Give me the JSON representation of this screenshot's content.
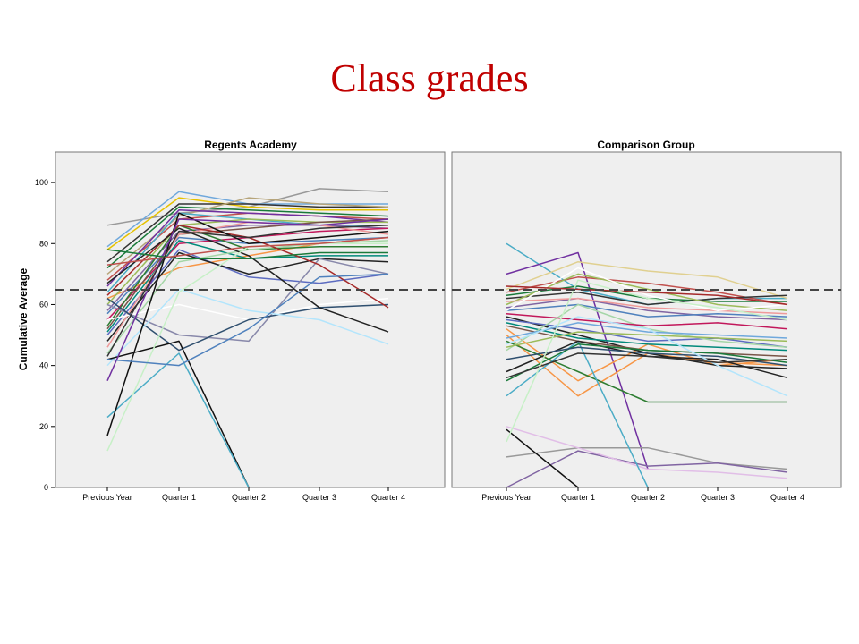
{
  "slide": {
    "title": "Class grades"
  },
  "chart_data": [
    {
      "type": "line",
      "title": "Regents Academy",
      "ylabel": "Cumulative Average",
      "categories": [
        "Previous Year",
        "Quarter 1",
        "Quarter 2",
        "Quarter 3",
        "Quarter 4"
      ],
      "yticks": [
        0,
        20,
        40,
        60,
        80,
        100
      ],
      "ylim": [
        0,
        110
      ],
      "reference_line": 65,
      "series": [
        {
          "color": "#999999",
          "values": [
            86,
            90,
            92,
            98,
            97
          ]
        },
        {
          "color": "#6fa8dc",
          "values": [
            79,
            97,
            93,
            93,
            93
          ]
        },
        {
          "color": "#e6c200",
          "values": [
            78,
            95,
            92,
            91,
            91
          ]
        },
        {
          "color": "#333333",
          "values": [
            74,
            93,
            93,
            92,
            92
          ]
        },
        {
          "color": "#1a7a3a",
          "values": [
            72,
            92,
            91,
            90,
            89
          ]
        },
        {
          "color": "#b7a57a",
          "values": [
            70,
            89,
            95,
            93,
            92
          ]
        },
        {
          "color": "#c0504d",
          "values": [
            68,
            88,
            90,
            89,
            88
          ]
        },
        {
          "color": "#7030a0",
          "values": [
            66,
            91,
            90,
            89,
            87
          ]
        },
        {
          "color": "#4bacc6",
          "values": [
            64,
            90,
            88,
            86,
            86
          ]
        },
        {
          "color": "#f79646",
          "values": [
            62,
            72,
            76,
            80,
            82
          ]
        },
        {
          "color": "#9bbb59",
          "values": [
            60,
            86,
            88,
            87,
            87
          ]
        },
        {
          "color": "#8064a2",
          "values": [
            58,
            84,
            86,
            86,
            85
          ]
        },
        {
          "color": "#4f81bd",
          "values": [
            57,
            82,
            80,
            81,
            82
          ]
        },
        {
          "color": "#c2185b",
          "values": [
            55,
            80,
            82,
            84,
            85
          ]
        },
        {
          "color": "#2e7d32",
          "values": [
            53,
            86,
            78,
            79,
            79
          ]
        },
        {
          "color": "#795548",
          "values": [
            52,
            83,
            85,
            87,
            88
          ]
        },
        {
          "color": "#00897b",
          "values": [
            51,
            81,
            75,
            76,
            76
          ]
        },
        {
          "color": "#5c6bc0",
          "values": [
            50,
            78,
            69,
            67,
            70
          ]
        },
        {
          "color": "#222222",
          "values": [
            48,
            77,
            70,
            75,
            74
          ]
        },
        {
          "color": "#ef9a9a",
          "values": [
            46,
            83,
            87,
            86,
            83
          ]
        },
        {
          "color": "#a5d6a7",
          "values": [
            44,
            74,
            78,
            80,
            81
          ]
        },
        {
          "color": "#ffffff",
          "values": [
            55,
            60,
            55,
            60,
            62
          ]
        },
        {
          "color": "#8888aa",
          "values": [
            60,
            50,
            48,
            75,
            70
          ]
        },
        {
          "color": "#2f4f6f",
          "values": [
            62,
            45,
            55,
            59,
            60
          ]
        },
        {
          "color": "#a52a2a",
          "values": [
            63,
            86,
            82,
            73,
            59
          ]
        },
        {
          "color": "#222222",
          "values": [
            67,
            85,
            76,
            59,
            51
          ]
        },
        {
          "color": "#b3e5fc",
          "values": [
            40,
            65,
            58,
            55,
            47
          ]
        },
        {
          "color": "#111111",
          "values": [
            42,
            48,
            0,
            null,
            null
          ]
        },
        {
          "color": "#4bacc6",
          "values": [
            23,
            44,
            0,
            null,
            null
          ]
        },
        {
          "color": "#111111",
          "values": [
            17,
            90,
            80,
            82,
            84
          ]
        },
        {
          "color": "#c7f0c7",
          "values": [
            12,
            64,
            79,
            80,
            80
          ]
        },
        {
          "color": "#7030a0",
          "values": [
            35,
            88,
            87,
            86,
            88
          ]
        },
        {
          "color": "#4f81bd",
          "values": [
            42,
            40,
            52,
            69,
            70
          ]
        },
        {
          "color": "#1a7a3a",
          "values": [
            78,
            75,
            75,
            77,
            77
          ]
        },
        {
          "color": "#c0504d",
          "values": [
            73,
            76,
            79,
            80,
            82
          ]
        },
        {
          "color": "#333333",
          "values": [
            43,
            84,
            82,
            85,
            86
          ]
        }
      ]
    },
    {
      "type": "line",
      "title": "Comparison Group",
      "categories": [
        "Previous Year",
        "Quarter 1",
        "Quarter 2",
        "Quarter 3",
        "Quarter 4"
      ],
      "yticks": [
        0,
        20,
        40,
        60,
        80,
        100
      ],
      "ylim": [
        0,
        110
      ],
      "reference_line": 65,
      "series": [
        {
          "color": "#4bacc6",
          "values": [
            80,
            65,
            60,
            62,
            62
          ]
        },
        {
          "color": "#7030a0",
          "values": [
            70,
            77,
            6,
            null,
            null
          ]
        },
        {
          "color": "#e0d090",
          "values": [
            65,
            74,
            71,
            69,
            62
          ]
        },
        {
          "color": "#c0504d",
          "values": [
            64,
            69,
            67,
            64,
            60
          ]
        },
        {
          "color": "#1a7a3a",
          "values": [
            63,
            66,
            62,
            61,
            61
          ]
        },
        {
          "color": "#333333",
          "values": [
            62,
            64,
            60,
            62,
            63
          ]
        },
        {
          "color": "#9bbb59",
          "values": [
            60,
            70,
            65,
            60,
            58
          ]
        },
        {
          "color": "#8064a2",
          "values": [
            59,
            62,
            58,
            56,
            55
          ]
        },
        {
          "color": "#4f81bd",
          "values": [
            58,
            60,
            56,
            57,
            56
          ]
        },
        {
          "color": "#f79646",
          "values": [
            52,
            35,
            47,
            40,
            42
          ]
        },
        {
          "color": "#f79646",
          "values": [
            50,
            30,
            44,
            41,
            40
          ]
        },
        {
          "color": "#2e7d32",
          "values": [
            48,
            38,
            28,
            28,
            28
          ]
        },
        {
          "color": "#999999",
          "values": [
            10,
            13,
            13,
            8,
            6
          ]
        },
        {
          "color": "#8064a2",
          "values": [
            0,
            12,
            7,
            8,
            5
          ]
        },
        {
          "color": "#e1bee7",
          "values": [
            20,
            13,
            6,
            5,
            3
          ]
        },
        {
          "color": "#111111",
          "values": [
            19,
            0,
            null,
            null,
            null
          ]
        },
        {
          "color": "#4bacc6",
          "values": [
            30,
            48,
            0,
            null,
            null
          ]
        },
        {
          "color": "#222222",
          "values": [
            56,
            50,
            44,
            40,
            39
          ]
        },
        {
          "color": "#5c6bc0",
          "values": [
            55,
            52,
            48,
            49,
            46
          ]
        },
        {
          "color": "#00897b",
          "values": [
            54,
            49,
            47,
            46,
            45
          ]
        },
        {
          "color": "#795548",
          "values": [
            53,
            48,
            45,
            44,
            43
          ]
        },
        {
          "color": "#a5d6a7",
          "values": [
            45,
            60,
            52,
            48,
            46
          ]
        },
        {
          "color": "#c2185b",
          "values": [
            57,
            55,
            53,
            54,
            52
          ]
        },
        {
          "color": "#222222",
          "values": [
            38,
            48,
            43,
            42,
            36
          ]
        },
        {
          "color": "#1a7a3a",
          "values": [
            35,
            47,
            45,
            44,
            41
          ]
        },
        {
          "color": "#2f4f6f",
          "values": [
            42,
            46,
            44,
            43,
            40
          ]
        },
        {
          "color": "#6fa8dc",
          "values": [
            49,
            54,
            51,
            50,
            49
          ]
        },
        {
          "color": "#b3e5fc",
          "values": [
            47,
            56,
            52,
            40,
            30
          ]
        },
        {
          "color": "#9bbb59",
          "values": [
            46,
            51,
            50,
            49,
            48
          ]
        },
        {
          "color": "#ef9a9a",
          "values": [
            61,
            62,
            59,
            58,
            57
          ]
        },
        {
          "color": "#ffffff",
          "values": [
            58,
            72,
            63,
            58,
            60
          ]
        },
        {
          "color": "#a52a2a",
          "values": [
            66,
            65,
            64,
            63,
            60
          ]
        },
        {
          "color": "#333333",
          "values": [
            36,
            44,
            43,
            41,
            42
          ]
        },
        {
          "color": "#c7f0c7",
          "values": [
            15,
            68,
            62,
            59,
            55
          ]
        }
      ]
    }
  ]
}
